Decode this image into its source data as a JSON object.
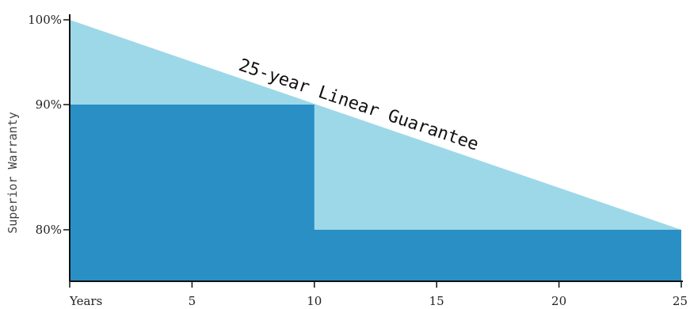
{
  "chart_data": {
    "type": "area",
    "ylabel": "Superior Warranty",
    "x_tick_labels": [
      "Years",
      "5",
      "10",
      "15",
      "20",
      "25"
    ],
    "x_ticks": [
      0,
      5,
      10,
      15,
      20,
      25
    ],
    "y_tick_labels": [
      "100%",
      "90%",
      "80%"
    ],
    "y_ticks": [
      100,
      90,
      80
    ],
    "xlim": [
      0,
      25
    ],
    "ylim": [
      74,
      100
    ],
    "annotation": "25-year Linear Guarantee",
    "series": [
      {
        "x": [
          0,
          25
        ],
        "y": [
          100,
          80
        ],
        "color": "#9dd8e8"
      },
      {
        "x": [
          0,
          10,
          10,
          25
        ],
        "y": [
          90,
          90,
          80,
          80
        ],
        "color": "#2a8fc5"
      }
    ]
  }
}
